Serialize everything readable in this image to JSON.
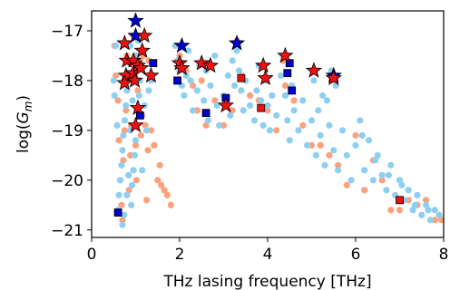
{
  "chart_data": {
    "type": "scatter",
    "title": "",
    "xlabel": "THz lasing frequency [THz]",
    "ylabel_parts": {
      "base": "log(",
      "symbol": "G",
      "sub": "m",
      "close": ")"
    },
    "xlim": [
      0,
      8
    ],
    "ylim": [
      -21.15,
      -16.6
    ],
    "x_ticks": [
      0,
      2,
      4,
      6,
      8
    ],
    "x_tick_labels": [
      "0",
      "2",
      "4",
      "6",
      "8"
    ],
    "y_ticks": [
      -17,
      -18,
      -19,
      -20,
      -21
    ],
    "y_tick_labels": [
      "−17",
      "−18",
      "−19",
      "−20",
      "−21"
    ],
    "grid": false,
    "legend": false,
    "colors": {
      "orange_dots": "#fca17d",
      "blue_dots": "#8ecff0",
      "blue_markers": "#0000cc",
      "red_markers": "#ee1111",
      "marker_edge": "#000000"
    },
    "series": [
      {
        "marker": "circle",
        "color": "#fca17d",
        "points": [
          [
            0.52,
            -17.3
          ],
          [
            0.55,
            -17.9
          ],
          [
            0.6,
            -18.4
          ],
          [
            0.62,
            -19.2
          ],
          [
            0.65,
            -20.0
          ],
          [
            0.68,
            -20.5
          ],
          [
            0.7,
            -20.8
          ],
          [
            0.72,
            -19.6
          ],
          [
            0.75,
            -19.0
          ],
          [
            0.78,
            -18.6
          ],
          [
            0.8,
            -17.5
          ],
          [
            0.85,
            -20.2
          ],
          [
            0.88,
            -19.5
          ],
          [
            0.9,
            -18.9
          ],
          [
            0.95,
            -17.8
          ],
          [
            1.0,
            -19.3
          ],
          [
            1.02,
            -20.0
          ],
          [
            1.05,
            -18.2
          ],
          [
            1.1,
            -17.6
          ],
          [
            1.12,
            -19.1
          ],
          [
            1.15,
            -18.7
          ],
          [
            1.18,
            -17.5
          ],
          [
            1.22,
            -18.9
          ],
          [
            1.28,
            -19.4
          ],
          [
            1.35,
            -19.0
          ],
          [
            1.42,
            -19.3
          ],
          [
            1.5,
            -20.0
          ],
          [
            1.58,
            -20.1
          ],
          [
            1.65,
            -20.2
          ],
          [
            1.72,
            -20.3
          ],
          [
            1.8,
            -20.5
          ],
          [
            1.55,
            -19.7
          ],
          [
            1.25,
            -20.4
          ],
          [
            2.0,
            -17.5
          ],
          [
            2.15,
            -17.8
          ],
          [
            2.3,
            -18.1
          ],
          [
            2.4,
            -18.6
          ],
          [
            2.6,
            -18.9
          ],
          [
            2.8,
            -18.4
          ],
          [
            3.0,
            -18.9
          ],
          [
            3.2,
            -18.6
          ],
          [
            3.4,
            -17.9
          ],
          [
            3.6,
            -18.3
          ],
          [
            3.8,
            -18.4
          ],
          [
            4.0,
            -18.6
          ],
          [
            4.2,
            -19.0
          ],
          [
            4.4,
            -18.1
          ],
          [
            4.6,
            -18.4
          ],
          [
            4.8,
            -18.9
          ],
          [
            5.0,
            -19.3
          ],
          [
            5.2,
            -19.3
          ],
          [
            5.4,
            -19.5
          ],
          [
            5.6,
            -19.7
          ],
          [
            5.8,
            -20.1
          ],
          [
            6.0,
            -19.1
          ],
          [
            6.2,
            -20.2
          ],
          [
            6.4,
            -19.6
          ],
          [
            6.6,
            -20.0
          ],
          [
            6.8,
            -20.6
          ],
          [
            7.0,
            -20.6
          ],
          [
            7.2,
            -20.4
          ],
          [
            7.4,
            -20.5
          ],
          [
            7.6,
            -20.4
          ],
          [
            7.8,
            -20.8
          ],
          [
            7.95,
            -20.8
          ],
          [
            0.95,
            -17.1
          ],
          [
            1.3,
            -17.6
          ],
          [
            2.5,
            -18.0
          ],
          [
            3.3,
            -17.2
          ],
          [
            4.35,
            -17.6
          ],
          [
            5.45,
            -18.0
          ]
        ]
      },
      {
        "marker": "circle",
        "color": "#8ecff0",
        "points": [
          [
            0.6,
            -20.6
          ],
          [
            0.62,
            -20.3
          ],
          [
            0.65,
            -20.0
          ],
          [
            0.68,
            -19.7
          ],
          [
            0.7,
            -19.4
          ],
          [
            0.72,
            -19.1
          ],
          [
            0.75,
            -18.8
          ],
          [
            0.78,
            -18.5
          ],
          [
            0.8,
            -18.2
          ],
          [
            0.82,
            -17.9
          ],
          [
            0.85,
            -17.6
          ],
          [
            0.88,
            -17.3
          ],
          [
            0.9,
            -20.5
          ],
          [
            0.92,
            -20.1
          ],
          [
            0.95,
            -19.8
          ],
          [
            0.98,
            -19.5
          ],
          [
            1.0,
            -19.2
          ],
          [
            1.02,
            -18.9
          ],
          [
            1.05,
            -18.6
          ],
          [
            1.08,
            -18.3
          ],
          [
            1.1,
            -18.0
          ],
          [
            1.12,
            -17.7
          ],
          [
            1.15,
            -17.4
          ],
          [
            1.18,
            -17.1
          ],
          [
            0.7,
            -20.9
          ],
          [
            0.74,
            -20.7
          ],
          [
            0.8,
            -20.3
          ],
          [
            0.84,
            -19.9
          ],
          [
            0.88,
            -19.0
          ],
          [
            0.93,
            -18.4
          ],
          [
            0.97,
            -17.9
          ],
          [
            1.01,
            -17.5
          ],
          [
            1.06,
            -17.2
          ],
          [
            1.2,
            -18.5
          ],
          [
            1.25,
            -19.0
          ],
          [
            1.15,
            -19.8
          ],
          [
            0.55,
            -17.3
          ],
          [
            0.5,
            -18.0
          ],
          [
            0.52,
            -18.3
          ],
          [
            0.58,
            -18.9
          ],
          [
            1.3,
            -18.2
          ],
          [
            1.35,
            -18.0
          ],
          [
            1.9,
            -17.3
          ],
          [
            1.95,
            -17.6
          ],
          [
            2.0,
            -17.8
          ],
          [
            2.05,
            -18.1
          ],
          [
            2.1,
            -18.3
          ],
          [
            2.15,
            -17.9
          ],
          [
            2.2,
            -17.4
          ],
          [
            2.25,
            -18.0
          ],
          [
            2.3,
            -18.6
          ],
          [
            2.4,
            -18.2
          ],
          [
            2.45,
            -17.7
          ],
          [
            2.55,
            -18.4
          ],
          [
            2.6,
            -17.8
          ],
          [
            2.65,
            -18.8
          ],
          [
            2.7,
            -18.1
          ],
          [
            2.8,
            -17.5
          ],
          [
            2.85,
            -18.5
          ],
          [
            2.9,
            -18.9
          ],
          [
            3.0,
            -18.3
          ],
          [
            3.1,
            -17.9
          ],
          [
            3.15,
            -18.7
          ],
          [
            3.2,
            -17.6
          ],
          [
            3.25,
            -18.1
          ],
          [
            3.3,
            -17.4
          ],
          [
            3.35,
            -17.8
          ],
          [
            3.4,
            -18.2
          ],
          [
            3.45,
            -18.6
          ],
          [
            3.5,
            -18.0
          ],
          [
            3.6,
            -18.5
          ],
          [
            3.7,
            -18.8
          ],
          [
            3.75,
            -18.2
          ],
          [
            3.8,
            -17.7
          ],
          [
            3.85,
            -18.4
          ],
          [
            3.9,
            -18.9
          ],
          [
            3.95,
            -18.0
          ],
          [
            4.0,
            -18.5
          ],
          [
            4.05,
            -19.0
          ],
          [
            4.1,
            -18.3
          ],
          [
            4.2,
            -18.7
          ],
          [
            4.3,
            -17.9
          ],
          [
            4.35,
            -17.5
          ],
          [
            4.4,
            -18.3
          ],
          [
            4.45,
            -18.8
          ],
          [
            4.5,
            -19.2
          ],
          [
            4.55,
            -18.1
          ],
          [
            4.6,
            -18.6
          ],
          [
            4.7,
            -19.0
          ],
          [
            4.8,
            -18.4
          ],
          [
            4.9,
            -19.3
          ],
          [
            5.0,
            -18.8
          ],
          [
            5.1,
            -19.5
          ],
          [
            5.15,
            -18.6
          ],
          [
            5.2,
            -19.1
          ],
          [
            5.3,
            -19.7
          ],
          [
            5.35,
            -18.4
          ],
          [
            5.4,
            -18.9
          ],
          [
            5.5,
            -19.4
          ],
          [
            5.55,
            -18.1
          ],
          [
            5.6,
            -19.8
          ],
          [
            5.7,
            -19.0
          ],
          [
            5.8,
            -19.5
          ],
          [
            5.9,
            -20.0
          ],
          [
            6.0,
            -19.3
          ],
          [
            6.1,
            -18.8
          ],
          [
            6.2,
            -19.8
          ],
          [
            6.3,
            -19.2
          ],
          [
            6.4,
            -20.0
          ],
          [
            6.5,
            -19.5
          ],
          [
            6.6,
            -19.9
          ],
          [
            6.7,
            -20.2
          ],
          [
            6.8,
            -19.7
          ],
          [
            6.9,
            -20.3
          ],
          [
            7.0,
            -20.0
          ],
          [
            7.1,
            -20.4
          ],
          [
            7.2,
            -20.2
          ],
          [
            7.3,
            -20.6
          ],
          [
            7.4,
            -20.3
          ],
          [
            7.5,
            -20.7
          ],
          [
            7.6,
            -20.5
          ],
          [
            7.7,
            -20.8
          ],
          [
            7.8,
            -20.6
          ],
          [
            7.9,
            -20.7
          ],
          [
            5.25,
            -18.3
          ],
          [
            5.45,
            -17.8
          ],
          [
            5.05,
            -18.0
          ],
          [
            6.15,
            -19.1
          ],
          [
            6.45,
            -19.6
          ],
          [
            6.75,
            -19.9
          ],
          [
            7.05,
            -20.1
          ],
          [
            7.35,
            -20.5
          ],
          [
            7.65,
            -20.6
          ]
        ]
      },
      {
        "marker": "square",
        "color": "#0000cc",
        "points": [
          [
            0.6,
            -20.65
          ],
          [
            1.1,
            -18.7
          ],
          [
            1.4,
            -17.65
          ],
          [
            1.95,
            -18.0
          ],
          [
            2.6,
            -18.65
          ],
          [
            3.05,
            -18.35
          ],
          [
            4.45,
            -17.85
          ],
          [
            4.5,
            -17.65
          ],
          [
            4.55,
            -18.2
          ]
        ]
      },
      {
        "marker": "square",
        "color": "#ee1111",
        "points": [
          [
            3.4,
            -17.95
          ],
          [
            3.85,
            -18.55
          ],
          [
            7.0,
            -20.4
          ]
        ]
      },
      {
        "marker": "star",
        "color": "#0000cc",
        "points": [
          [
            1.0,
            -16.8
          ],
          [
            2.05,
            -17.3
          ],
          [
            3.3,
            -17.25
          ],
          [
            5.5,
            -17.9
          ],
          [
            1.0,
            -17.1
          ]
        ]
      },
      {
        "marker": "star",
        "color": "#ee1111",
        "points": [
          [
            0.75,
            -17.25
          ],
          [
            0.8,
            -17.6
          ],
          [
            0.78,
            -17.9
          ],
          [
            0.75,
            -18.05
          ],
          [
            0.95,
            -17.6
          ],
          [
            0.95,
            -17.85
          ],
          [
            0.98,
            -18.0
          ],
          [
            1.05,
            -17.7
          ],
          [
            1.12,
            -17.75
          ],
          [
            1.15,
            -17.4
          ],
          [
            1.2,
            -17.1
          ],
          [
            1.35,
            -17.9
          ],
          [
            1.05,
            -18.55
          ],
          [
            1.0,
            -18.9
          ],
          [
            2.0,
            -17.65
          ],
          [
            2.05,
            -17.75
          ],
          [
            2.5,
            -17.65
          ],
          [
            2.7,
            -17.7
          ],
          [
            3.05,
            -18.5
          ],
          [
            3.9,
            -17.7
          ],
          [
            3.95,
            -17.95
          ],
          [
            4.4,
            -17.5
          ],
          [
            5.05,
            -17.8
          ],
          [
            5.5,
            -17.95
          ]
        ]
      }
    ]
  }
}
